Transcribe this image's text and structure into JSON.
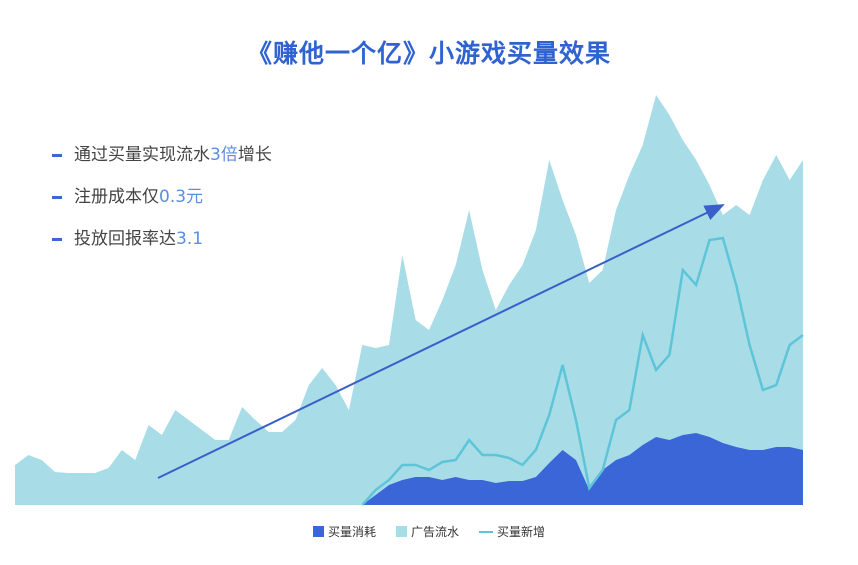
{
  "chart_data": {
    "type": "area",
    "title": "《赚他一个亿》小游戏买量效果",
    "bullets": [
      {
        "text": "通过买量实现流水",
        "highlight": "3倍",
        "suffix": "增长"
      },
      {
        "text": "注册成本仅",
        "highlight": "0.3元"
      },
      {
        "text": "投放回报率达",
        "highlight": "3.1"
      }
    ],
    "ylim": [
      0,
      420
    ],
    "series": [
      {
        "name": "买量消耗",
        "color": "#3a66d8",
        "kind": "area",
        "values": [
          0,
          0,
          0,
          0,
          0,
          0,
          0,
          0,
          0,
          0,
          0,
          0,
          0,
          0,
          0,
          0,
          0,
          0,
          0,
          0,
          0,
          0,
          0,
          0,
          0,
          0,
          0,
          10,
          20,
          25,
          28,
          28,
          25,
          28,
          25,
          25,
          22,
          24,
          24,
          28,
          42,
          55,
          45,
          15,
          35,
          45,
          50,
          60,
          68,
          65,
          70,
          72,
          68,
          62,
          58,
          55,
          55,
          58,
          58,
          55
        ]
      },
      {
        "name": "广告流水",
        "color": "#a8dde8",
        "kind": "area",
        "values": [
          40,
          50,
          45,
          33,
          32,
          32,
          32,
          37,
          55,
          45,
          80,
          70,
          95,
          85,
          75,
          65,
          65,
          98,
          85,
          73,
          73,
          85,
          120,
          137,
          120,
          95,
          160,
          157,
          160,
          250,
          185,
          175,
          205,
          240,
          295,
          235,
          195,
          220,
          240,
          275,
          345,
          305,
          270,
          222,
          235,
          295,
          330,
          360,
          410,
          390,
          365,
          345,
          320,
          290,
          300,
          290,
          325,
          350,
          325,
          345
        ]
      },
      {
        "name": "买量新增",
        "color": "#5ec4d8",
        "kind": "line",
        "values": [
          null,
          null,
          null,
          null,
          null,
          null,
          null,
          null,
          null,
          null,
          null,
          null,
          null,
          null,
          null,
          null,
          null,
          null,
          null,
          null,
          null,
          null,
          null,
          null,
          null,
          null,
          0,
          15,
          25,
          40,
          40,
          35,
          43,
          45,
          65,
          50,
          50,
          47,
          40,
          55,
          90,
          140,
          85,
          17,
          35,
          85,
          95,
          170,
          135,
          150,
          235,
          220,
          265,
          267,
          220,
          160,
          115,
          120,
          160,
          170
        ]
      }
    ]
  }
}
